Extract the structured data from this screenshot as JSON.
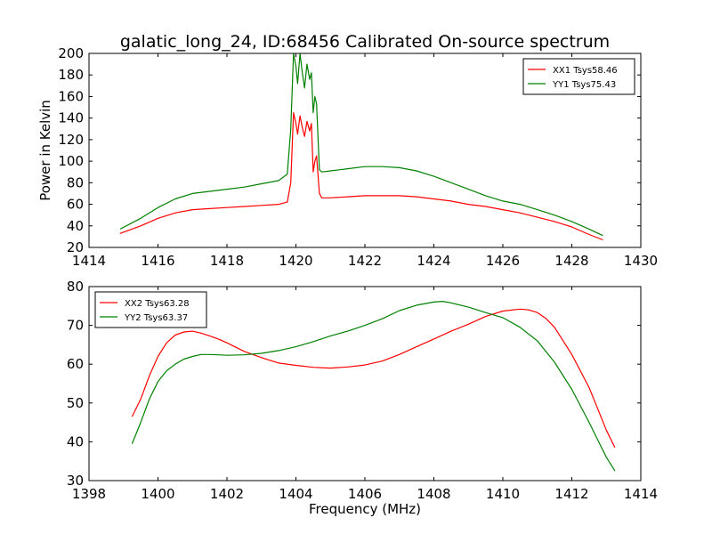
{
  "figure": {
    "title": "galatic_long_24, ID:68456 Calibrated On-source spectrum"
  },
  "chart_data": [
    {
      "type": "line",
      "title": "galatic_long_24, ID:68456 Calibrated On-source spectrum",
      "xlabel": "",
      "ylabel": "Power in Kelvin",
      "xlim": [
        1414,
        1430
      ],
      "ylim": [
        20,
        200
      ],
      "xticks": [
        1414,
        1416,
        1418,
        1420,
        1422,
        1424,
        1426,
        1428,
        1430
      ],
      "yticks": [
        20,
        40,
        60,
        80,
        100,
        120,
        140,
        160,
        180,
        200
      ],
      "grid": false,
      "legend_position": "top-right",
      "series": [
        {
          "name": "XX1 Tsys58.46",
          "color": "#ff0000",
          "x": [
            1414.9,
            1415.5,
            1416.0,
            1416.5,
            1417.0,
            1417.5,
            1418.0,
            1418.5,
            1419.0,
            1419.5,
            1419.75,
            1419.85,
            1419.93,
            1420.0,
            1420.05,
            1420.12,
            1420.18,
            1420.25,
            1420.32,
            1420.4,
            1420.45,
            1420.5,
            1420.55,
            1420.6,
            1420.68,
            1420.75,
            1421.0,
            1421.5,
            1422.0,
            1422.5,
            1423.0,
            1423.5,
            1424.0,
            1424.5,
            1425.0,
            1425.5,
            1426.0,
            1426.5,
            1427.0,
            1427.5,
            1428.0,
            1428.5,
            1428.9
          ],
          "values": [
            33,
            40,
            47,
            52,
            55,
            56,
            57,
            58,
            59,
            60,
            62,
            80,
            145,
            135,
            125,
            142,
            132,
            123,
            137,
            128,
            135,
            90,
            100,
            105,
            70,
            66,
            66,
            67,
            68,
            68,
            68,
            67,
            65,
            63,
            60,
            58,
            55,
            52,
            48,
            44,
            39,
            32,
            27
          ]
        },
        {
          "name": "YY1 Tsys75.43",
          "color": "#008000",
          "x": [
            1414.9,
            1415.5,
            1416.0,
            1416.5,
            1417.0,
            1417.5,
            1418.0,
            1418.5,
            1419.0,
            1419.5,
            1419.75,
            1419.85,
            1419.93,
            1420.0,
            1420.05,
            1420.12,
            1420.18,
            1420.25,
            1420.32,
            1420.4,
            1420.45,
            1420.5,
            1420.55,
            1420.6,
            1420.68,
            1420.75,
            1421.0,
            1421.5,
            1422.0,
            1422.5,
            1423.0,
            1423.5,
            1424.0,
            1424.5,
            1425.0,
            1425.5,
            1426.0,
            1426.5,
            1427.0,
            1427.5,
            1428.0,
            1428.5,
            1428.9
          ],
          "values": [
            37,
            47,
            57,
            65,
            70,
            72,
            74,
            76,
            79,
            82,
            88,
            130,
            200,
            188,
            172,
            200,
            183,
            168,
            190,
            176,
            182,
            145,
            160,
            153,
            92,
            90,
            91,
            93,
            95,
            95,
            94,
            91,
            86,
            80,
            74,
            68,
            63,
            60,
            55,
            50,
            44,
            37,
            31
          ]
        }
      ]
    },
    {
      "type": "line",
      "title": "",
      "xlabel": "Frequency (MHz)",
      "ylabel": "",
      "xlim": [
        1398,
        1414
      ],
      "ylim": [
        30,
        80
      ],
      "xticks": [
        1398,
        1400,
        1402,
        1404,
        1406,
        1408,
        1410,
        1412,
        1414
      ],
      "yticks": [
        30,
        40,
        50,
        60,
        70,
        80
      ],
      "grid": false,
      "legend_position": "top-left",
      "series": [
        {
          "name": "XX2 Tsys63.28",
          "color": "#ff0000",
          "x": [
            1399.25,
            1399.5,
            1399.75,
            1400.0,
            1400.25,
            1400.5,
            1400.75,
            1401.0,
            1401.25,
            1401.5,
            1401.75,
            1402.0,
            1402.5,
            1403.0,
            1403.5,
            1404.0,
            1404.5,
            1405.0,
            1405.5,
            1406.0,
            1406.5,
            1407.0,
            1407.5,
            1408.0,
            1408.5,
            1409.0,
            1409.5,
            1410.0,
            1410.5,
            1410.75,
            1411.0,
            1411.25,
            1411.5,
            1412.0,
            1412.5,
            1413.0,
            1413.25
          ],
          "values": [
            46.5,
            51,
            57,
            62,
            65.5,
            67.5,
            68.3,
            68.5,
            68,
            67.3,
            66.5,
            65.5,
            63.3,
            61.7,
            60.3,
            59.7,
            59.2,
            59.0,
            59.3,
            59.8,
            60.8,
            62.5,
            64.5,
            66.5,
            68.5,
            70.3,
            72.3,
            73.7,
            74.2,
            74.0,
            73.3,
            71.8,
            69.5,
            62.5,
            54,
            43,
            38.5
          ]
        },
        {
          "name": "YY2 Tsys63.37",
          "color": "#008000",
          "x": [
            1399.25,
            1399.5,
            1399.75,
            1400.0,
            1400.25,
            1400.5,
            1400.75,
            1401.0,
            1401.25,
            1401.5,
            1401.75,
            1402.0,
            1402.5,
            1403.0,
            1403.5,
            1404.0,
            1404.5,
            1405.0,
            1405.5,
            1406.0,
            1406.5,
            1407.0,
            1407.5,
            1408.0,
            1408.25,
            1408.5,
            1409.0,
            1409.5,
            1410.0,
            1410.5,
            1411.0,
            1411.5,
            1412.0,
            1412.5,
            1413.0,
            1413.25
          ],
          "values": [
            39.5,
            45,
            51,
            55.5,
            58.3,
            60,
            61.3,
            62,
            62.5,
            62.5,
            62.4,
            62.3,
            62.4,
            62.8,
            63.5,
            64.5,
            65.8,
            67.3,
            68.5,
            70,
            71.7,
            73.8,
            75.2,
            76.0,
            76.2,
            75.8,
            74.7,
            73.3,
            72.0,
            69.5,
            66,
            60.5,
            53.5,
            45,
            36,
            32.5
          ]
        }
      ]
    }
  ]
}
